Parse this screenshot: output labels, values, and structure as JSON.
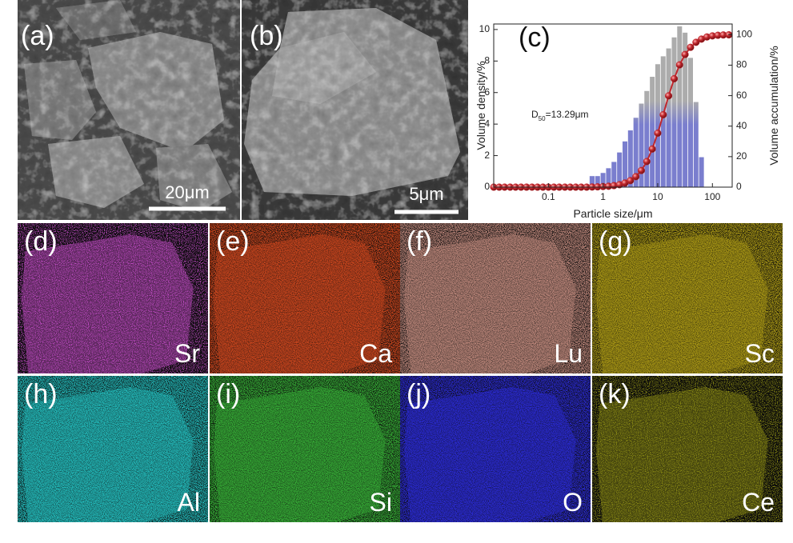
{
  "panels": [
    {
      "label": "(a)",
      "scale_bar": "20μm"
    },
    {
      "label": "(b)",
      "scale_bar": "5μm"
    }
  ],
  "chart_data": {
    "type": "histogram",
    "label": "(c)",
    "x_label": "Particle size/μm",
    "y_label": "Volume density/%",
    "y2_label": "Volume accumulation/%",
    "annotation": {
      "main": "D",
      "sub": "50",
      "rest": "=13.29μm"
    },
    "log_x": true,
    "xlim": [
      0.01,
      230
    ],
    "xticks": [
      0.1,
      1,
      10,
      100
    ],
    "ylim": [
      0,
      10.35
    ],
    "yticks": [
      0,
      2,
      4,
      6,
      8,
      10
    ],
    "y2lim": [
      0,
      107
    ],
    "y2ticks": [
      0,
      20,
      40,
      60,
      80,
      100
    ],
    "histogram": {
      "bins": [
        0.56,
        0.71,
        0.89,
        1.12,
        1.41,
        1.78,
        2.24,
        2.82,
        3.55,
        4.47,
        5.62,
        7.08,
        8.91,
        11.2,
        14.1,
        17.8,
        22.4,
        28.2,
        35.5,
        44.7,
        56.2,
        70.8
      ],
      "values": [
        0.7,
        0.7,
        0.9,
        1.2,
        1.6,
        2.2,
        2.9,
        3.6,
        4.4,
        5.3,
        6.1,
        7.0,
        7.8,
        8.3,
        8.8,
        9.5,
        10.2,
        9.8,
        8.2,
        5.4,
        1.9
      ],
      "color": "#a3a3a3",
      "base_color": "#6b70c8"
    },
    "cumulative": {
      "axis": "y2",
      "color": "#c0272d",
      "x": [
        0.01,
        0.0126,
        0.0158,
        0.02,
        0.0251,
        0.0316,
        0.0398,
        0.0501,
        0.0631,
        0.0794,
        0.1,
        0.126,
        0.158,
        0.2,
        0.251,
        0.316,
        0.398,
        0.501,
        0.631,
        0.794,
        1,
        1.26,
        1.58,
        2,
        2.51,
        3.16,
        3.98,
        5.01,
        6.31,
        7.94,
        10,
        12.6,
        15.8,
        20,
        25.1,
        31.6,
        39.8,
        50.1,
        63.1,
        79.4,
        100,
        126,
        158,
        200
      ],
      "values": [
        0,
        0,
        0,
        0,
        0,
        0,
        0,
        0,
        0,
        0,
        0,
        0,
        0,
        0,
        0,
        0,
        0,
        0,
        0.1,
        0.2,
        0.4,
        0.6,
        1.0,
        1.6,
        2.7,
        4.3,
        6.9,
        10.9,
        16.8,
        25.0,
        35.4,
        47.5,
        59.9,
        71.1,
        80.2,
        87.0,
        91.7,
        95.0,
        97.1,
        98.5,
        99.2,
        99.6,
        99.8,
        99.9
      ]
    }
  },
  "maps": [
    {
      "label": "(d)",
      "element": "Sr"
    },
    {
      "label": "(e)",
      "element": "Ca"
    },
    {
      "label": "(f)",
      "element": "Lu"
    },
    {
      "label": "(g)",
      "element": "Sc"
    },
    {
      "label": "(h)",
      "element": "Al"
    },
    {
      "label": "(i)",
      "element": "Si"
    },
    {
      "label": "(j)",
      "element": "O"
    },
    {
      "label": "(k)",
      "element": "Ce"
    }
  ]
}
